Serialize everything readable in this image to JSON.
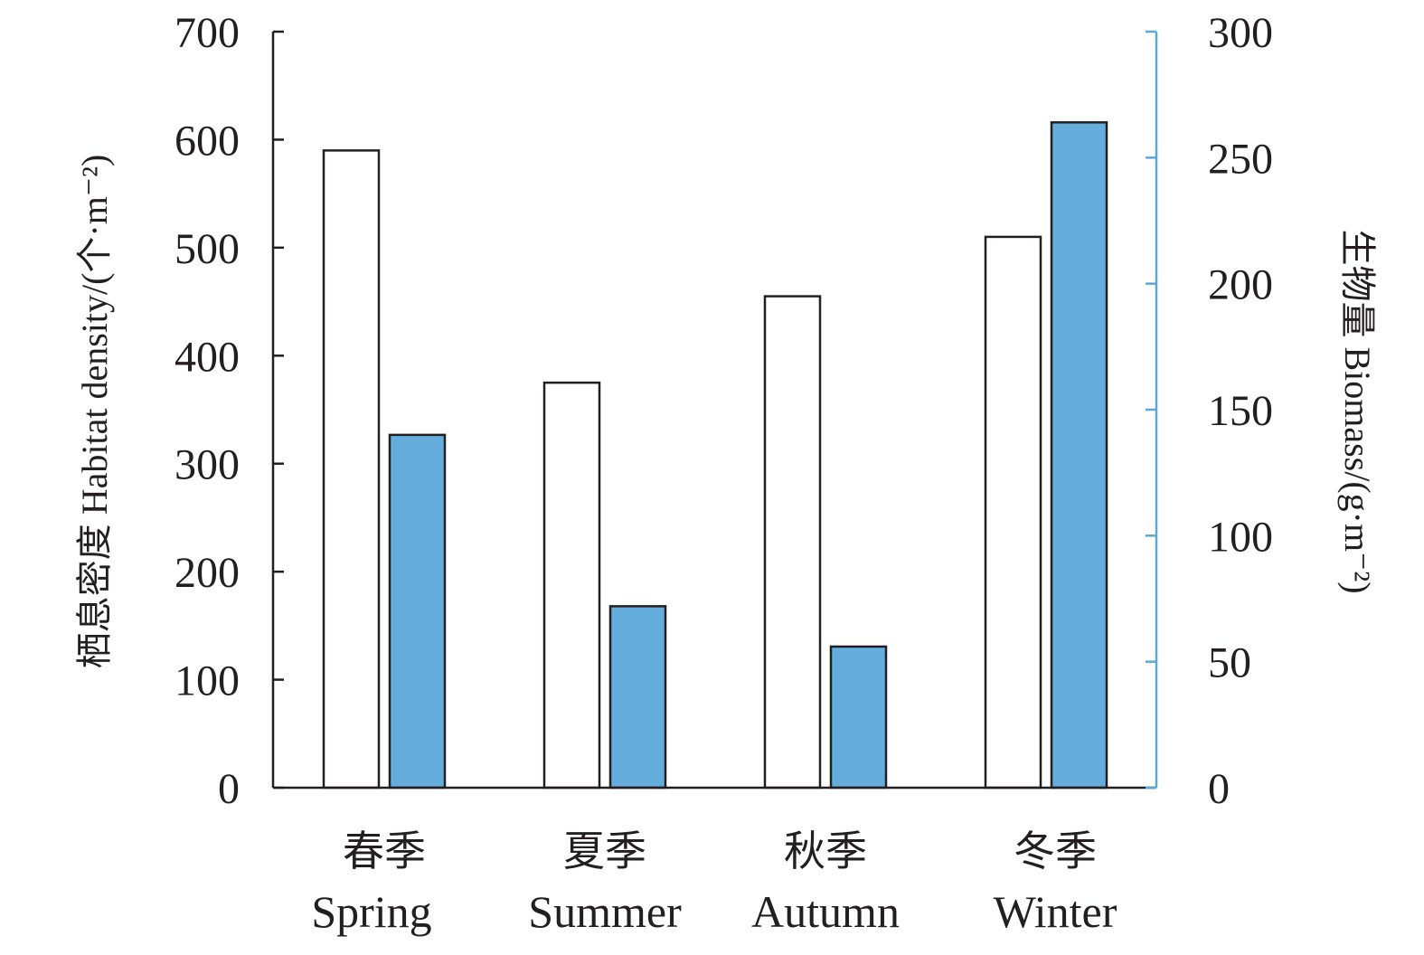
{
  "chart_data": {
    "type": "bar",
    "categories": [
      {
        "cn": "春季",
        "en": "Spring"
      },
      {
        "cn": "夏季",
        "en": "Summer"
      },
      {
        "cn": "秋季",
        "en": "Autumn"
      },
      {
        "cn": "冬季",
        "en": "Winter"
      }
    ],
    "series": [
      {
        "name": "Habitat density",
        "axis": "left",
        "values": [
          590,
          375,
          455,
          510
        ],
        "color": "#ffffff"
      },
      {
        "name": "Biomass",
        "axis": "right",
        "values": [
          140,
          72,
          56,
          264
        ],
        "color": "#64addd"
      }
    ],
    "ylabel_left": "栖息密度 Habitat density/(个·m⁻²)",
    "ylabel_right": "生物量 Biomass/(g·m⁻²)",
    "ylim_left": [
      0,
      700
    ],
    "ylim_right": [
      0,
      300
    ],
    "yticks_left": [
      "0",
      "100",
      "200",
      "300",
      "400",
      "500",
      "600",
      "700"
    ],
    "yticks_right": [
      "0",
      "50",
      "100",
      "150",
      "200",
      "250",
      "300"
    ],
    "right_axis_color": "#5aa9d6",
    "grid": false
  }
}
